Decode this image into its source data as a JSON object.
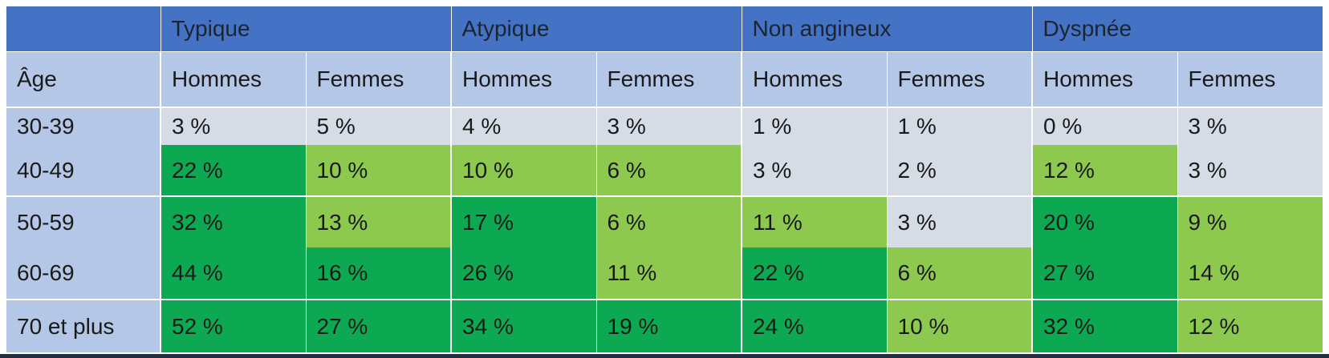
{
  "chart_data": {
    "type": "table",
    "title": "",
    "row_axis_label": "Âge",
    "column_groups": [
      "Typique",
      "Atypique",
      "Non angineux",
      "Dyspnée"
    ],
    "sub_columns": [
      "Hommes",
      "Femmes"
    ],
    "age_groups": [
      "30-39",
      "40-49",
      "50-59",
      "60-69",
      "70 et plus"
    ],
    "values_percent": {
      "Typique": {
        "Hommes": [
          3,
          22,
          32,
          44,
          52
        ],
        "Femmes": [
          5,
          10,
          13,
          16,
          27
        ]
      },
      "Atypique": {
        "Hommes": [
          4,
          10,
          17,
          26,
          34
        ],
        "Femmes": [
          3,
          6,
          6,
          11,
          19
        ]
      },
      "Non angineux": {
        "Hommes": [
          1,
          3,
          11,
          22,
          24
        ],
        "Femmes": [
          1,
          2,
          3,
          6,
          10
        ]
      },
      "Dyspnée": {
        "Hommes": [
          0,
          12,
          20,
          27,
          32
        ],
        "Femmes": [
          3,
          3,
          9,
          14,
          12
        ]
      }
    },
    "cell_color_levels": {
      "low": "#D6DCE5",
      "mid": "#8DC94F",
      "high": "#0CA852"
    }
  },
  "colors": {
    "group_header_blue": "#4472C4",
    "sub_header_blue": "#B4C7E7",
    "cell_gray": "#D6DCE5",
    "cell_light_green": "#8DC94F",
    "cell_dark_green": "#0CA852",
    "bottom_border": "#22303f",
    "text": "#1a1a1a"
  },
  "table": {
    "corner": "",
    "groups": [
      "Typique",
      "Atypique",
      "Non angineux",
      "Dyspnée"
    ],
    "age_label": "Âge",
    "col_headers": [
      "Hommes",
      "Femmes",
      "Hommes",
      "Femmes",
      "Hommes",
      "Femmes",
      "Hommes",
      "Femmes"
    ],
    "rows": [
      {
        "age": "30-39",
        "cells": [
          {
            "t": "3 %",
            "lvl": "low"
          },
          {
            "t": "5 %",
            "lvl": "low"
          },
          {
            "t": "4 %",
            "lvl": "low"
          },
          {
            "t": "3 %",
            "lvl": "low"
          },
          {
            "t": "1 %",
            "lvl": "low"
          },
          {
            "t": "1 %",
            "lvl": "low"
          },
          {
            "t": "0 %",
            "lvl": "low"
          },
          {
            "t": "3 %",
            "lvl": "low"
          }
        ]
      },
      {
        "age": "40-49",
        "cells": [
          {
            "t": "22 %",
            "lvl": "high"
          },
          {
            "t": "10 %",
            "lvl": "mid"
          },
          {
            "t": "10 %",
            "lvl": "mid"
          },
          {
            "t": "6 %",
            "lvl": "mid"
          },
          {
            "t": "3 %",
            "lvl": "low"
          },
          {
            "t": "2 %",
            "lvl": "low"
          },
          {
            "t": "12 %",
            "lvl": "mid"
          },
          {
            "t": "3 %",
            "lvl": "low"
          }
        ]
      },
      {
        "age": "50-59",
        "cells": [
          {
            "t": "32 %",
            "lvl": "high"
          },
          {
            "t": "13 %",
            "lvl": "mid"
          },
          {
            "t": "17 %",
            "lvl": "high"
          },
          {
            "t": "6 %",
            "lvl": "mid"
          },
          {
            "t": "11 %",
            "lvl": "mid"
          },
          {
            "t": "3 %",
            "lvl": "low"
          },
          {
            "t": "20 %",
            "lvl": "high"
          },
          {
            "t": "9 %",
            "lvl": "mid"
          }
        ]
      },
      {
        "age": "60-69",
        "cells": [
          {
            "t": "44 %",
            "lvl": "high"
          },
          {
            "t": "16 %",
            "lvl": "high"
          },
          {
            "t": "26 %",
            "lvl": "high"
          },
          {
            "t": "11 %",
            "lvl": "mid"
          },
          {
            "t": "22 %",
            "lvl": "high"
          },
          {
            "t": "6 %",
            "lvl": "mid"
          },
          {
            "t": "27 %",
            "lvl": "high"
          },
          {
            "t": "14 %",
            "lvl": "mid"
          }
        ]
      },
      {
        "age": "70 et plus",
        "cells": [
          {
            "t": "52 %",
            "lvl": "high"
          },
          {
            "t": "27 %",
            "lvl": "high"
          },
          {
            "t": "34 %",
            "lvl": "high"
          },
          {
            "t": "19 %",
            "lvl": "high"
          },
          {
            "t": "24 %",
            "lvl": "high"
          },
          {
            "t": "10 %",
            "lvl": "mid"
          },
          {
            "t": "32 %",
            "lvl": "high"
          },
          {
            "t": "12 %",
            "lvl": "mid"
          }
        ]
      }
    ]
  }
}
